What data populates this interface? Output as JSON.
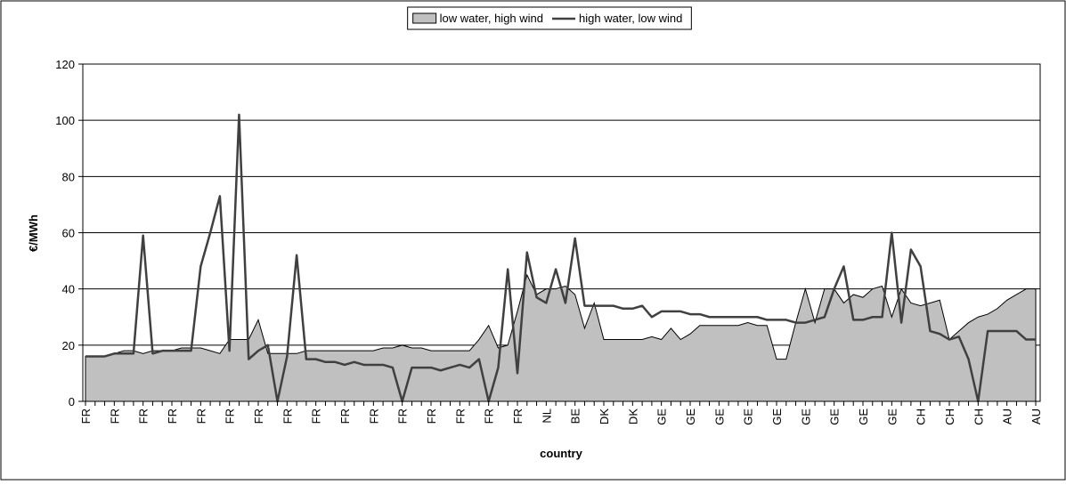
{
  "chart_data": {
    "type": "line",
    "y_label": "€/MWh",
    "x_label": "country",
    "categories": [
      "FR",
      null,
      null,
      "FR",
      null,
      null,
      "FR",
      null,
      null,
      "FR",
      null,
      null,
      "FR",
      null,
      null,
      "FR",
      null,
      null,
      "FR",
      null,
      null,
      "FR",
      null,
      null,
      "FR",
      null,
      null,
      "FR",
      null,
      null,
      "FR",
      null,
      null,
      "FR",
      null,
      null,
      "FR",
      null,
      null,
      "FR",
      null,
      null,
      "FR",
      null,
      null,
      "FR",
      null,
      null,
      "NL",
      null,
      null,
      "BE",
      null,
      null,
      "DK",
      null,
      null,
      "DK",
      null,
      null,
      "GE",
      null,
      null,
      "GE",
      null,
      null,
      "GE",
      null,
      null,
      "GE",
      null,
      null,
      "GE",
      null,
      null,
      "GE",
      null,
      null,
      "GE",
      null,
      null,
      "GE",
      null,
      null,
      "GE",
      null,
      null,
      "CH",
      null,
      null,
      "CH",
      null,
      null,
      "CH",
      null,
      null,
      "AU",
      null,
      null,
      "AU"
    ],
    "series": [
      {
        "name": "low water, high wind",
        "type": "area",
        "color": "#c0c0c0",
        "values": [
          16,
          16,
          16,
          17,
          18,
          18,
          17,
          18,
          18,
          18,
          19,
          19,
          19,
          18,
          17,
          22,
          22,
          22,
          29,
          17,
          17,
          17,
          17,
          18,
          18,
          18,
          18,
          18,
          18,
          18,
          18,
          19,
          19,
          20,
          19,
          19,
          18,
          18,
          18,
          18,
          18,
          22,
          27,
          19,
          20,
          32,
          45,
          38,
          40,
          40,
          41,
          38,
          26,
          35,
          22,
          22,
          22,
          22,
          22,
          23,
          22,
          26,
          22,
          24,
          27,
          27,
          27,
          27,
          27,
          28,
          27,
          27,
          15,
          15,
          28,
          40,
          28,
          40,
          40,
          35,
          38,
          37,
          40,
          41,
          30,
          40,
          35,
          34,
          35,
          36,
          22,
          25,
          28,
          30,
          31,
          33,
          36,
          38,
          40,
          40
        ]
      },
      {
        "name": "high water, low wind",
        "type": "line",
        "color": "#404040",
        "values": [
          16,
          16,
          16,
          17,
          17,
          17,
          59,
          17,
          18,
          18,
          18,
          18,
          48,
          60,
          73,
          18,
          102,
          15,
          18,
          20,
          0,
          16,
          52,
          15,
          15,
          14,
          14,
          13,
          14,
          13,
          13,
          13,
          12,
          0,
          12,
          12,
          12,
          11,
          12,
          13,
          12,
          15,
          0,
          12,
          47,
          10,
          53,
          37,
          35,
          47,
          35,
          58,
          34,
          34,
          34,
          34,
          33,
          33,
          34,
          30,
          32,
          32,
          32,
          31,
          31,
          30,
          30,
          30,
          30,
          30,
          30,
          29,
          29,
          29,
          28,
          28,
          29,
          30,
          40,
          48,
          29,
          29,
          30,
          30,
          60,
          28,
          54,
          48,
          25,
          24,
          22,
          23,
          15,
          0,
          25,
          25,
          25,
          25,
          22,
          22
        ]
      }
    ],
    "ylim": [
      0,
      120
    ],
    "yticks": [
      0,
      20,
      40,
      60,
      80,
      100,
      120
    ],
    "grid": true
  }
}
